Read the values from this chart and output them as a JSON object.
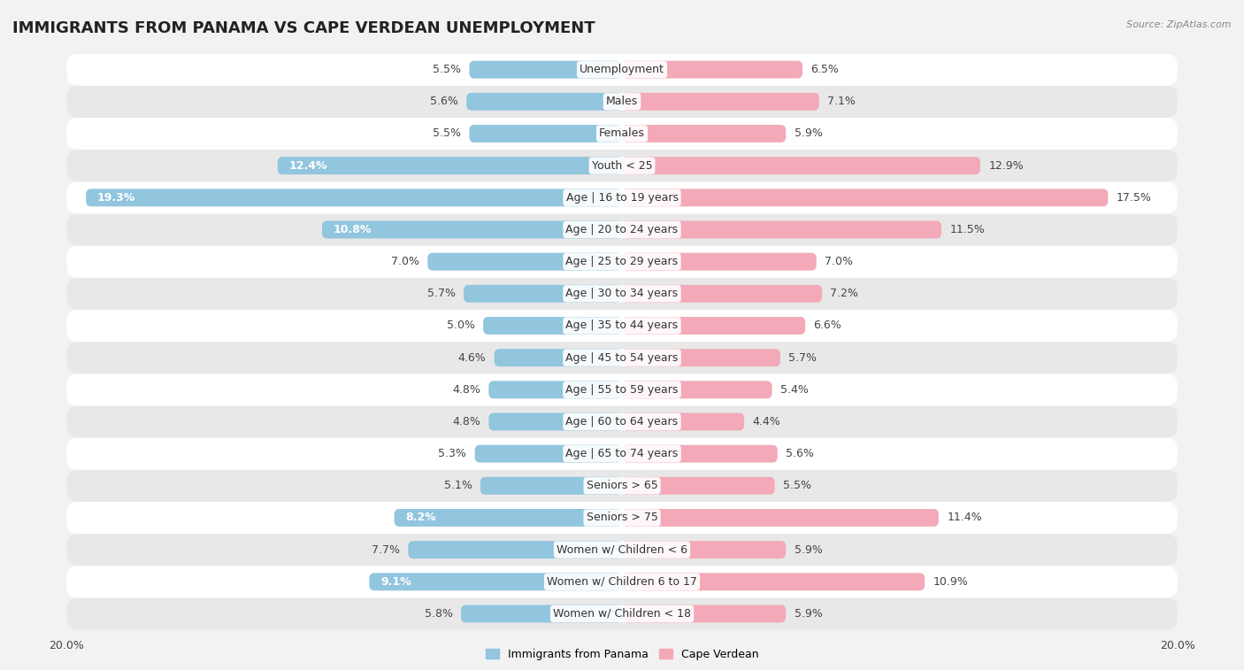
{
  "title": "IMMIGRANTS FROM PANAMA VS CAPE VERDEAN UNEMPLOYMENT",
  "source": "Source: ZipAtlas.com",
  "categories": [
    "Unemployment",
    "Males",
    "Females",
    "Youth < 25",
    "Age | 16 to 19 years",
    "Age | 20 to 24 years",
    "Age | 25 to 29 years",
    "Age | 30 to 34 years",
    "Age | 35 to 44 years",
    "Age | 45 to 54 years",
    "Age | 55 to 59 years",
    "Age | 60 to 64 years",
    "Age | 65 to 74 years",
    "Seniors > 65",
    "Seniors > 75",
    "Women w/ Children < 6",
    "Women w/ Children 6 to 17",
    "Women w/ Children < 18"
  ],
  "panama_values": [
    5.5,
    5.6,
    5.5,
    12.4,
    19.3,
    10.8,
    7.0,
    5.7,
    5.0,
    4.6,
    4.8,
    4.8,
    5.3,
    5.1,
    8.2,
    7.7,
    9.1,
    5.8
  ],
  "capeverde_values": [
    6.5,
    7.1,
    5.9,
    12.9,
    17.5,
    11.5,
    7.0,
    7.2,
    6.6,
    5.7,
    5.4,
    4.4,
    5.6,
    5.5,
    11.4,
    5.9,
    10.9,
    5.9
  ],
  "panama_color": "#92c5de",
  "capeverde_color": "#f4a9b8",
  "background_color": "#f2f2f2",
  "row_color_light": "#ffffff",
  "row_color_dark": "#e8e8e8",
  "max_val": 20.0,
  "bar_height": 0.55,
  "title_fontsize": 13,
  "label_fontsize": 9,
  "tick_fontsize": 9,
  "legend_fontsize": 9
}
